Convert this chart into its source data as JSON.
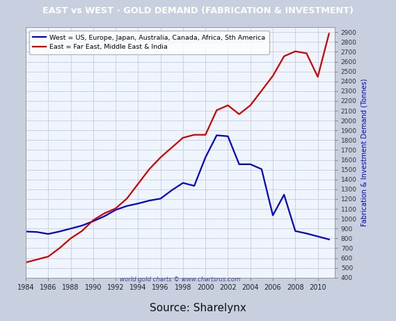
{
  "title": "EAST vs WEST - GOLD DEMAND (FABRICATION & INVESTMENT)",
  "title_bg": "#7788dd",
  "title_color": "white",
  "ylabel": "Fabrication & Investment Demand (Tonnes)",
  "ylabel_color": "#0000cc",
  "watermark": "world gold charts © www.chartsrus.com",
  "source": "Source: Sharelynx",
  "west_label": "West = US, Europe, Japan, Australia, Canada, Africa, Sth America",
  "east_label": "East = Far East, Middle East & India",
  "west_color": "#0000cc",
  "east_color": "#cc0000",
  "ylim": [
    400,
    2950
  ],
  "outer_bg": "#c8d0e0",
  "panel_bg": "#f0f4fc",
  "border_color": "#aaaaaa",
  "grid_color": "#b8c8dc",
  "years": [
    1984,
    1985,
    1986,
    1987,
    1988,
    1989,
    1990,
    1991,
    1992,
    1993,
    1994,
    1995,
    1996,
    1997,
    1998,
    1999,
    2000,
    2001,
    2002,
    2003,
    2004,
    2005,
    2006,
    2007,
    2008,
    2009,
    2010,
    2011
  ],
  "west_data": [
    870,
    865,
    845,
    870,
    900,
    930,
    975,
    1025,
    1090,
    1130,
    1155,
    1185,
    1205,
    1290,
    1365,
    1335,
    1625,
    1850,
    1840,
    1555,
    1555,
    1505,
    1035,
    1245,
    875,
    850,
    820,
    790
  ],
  "east_data": [
    555,
    585,
    615,
    700,
    800,
    875,
    985,
    1055,
    1105,
    1205,
    1355,
    1505,
    1625,
    1725,
    1825,
    1855,
    1855,
    2105,
    2155,
    2065,
    2155,
    2305,
    2455,
    2655,
    2705,
    2685,
    2445,
    2885
  ]
}
